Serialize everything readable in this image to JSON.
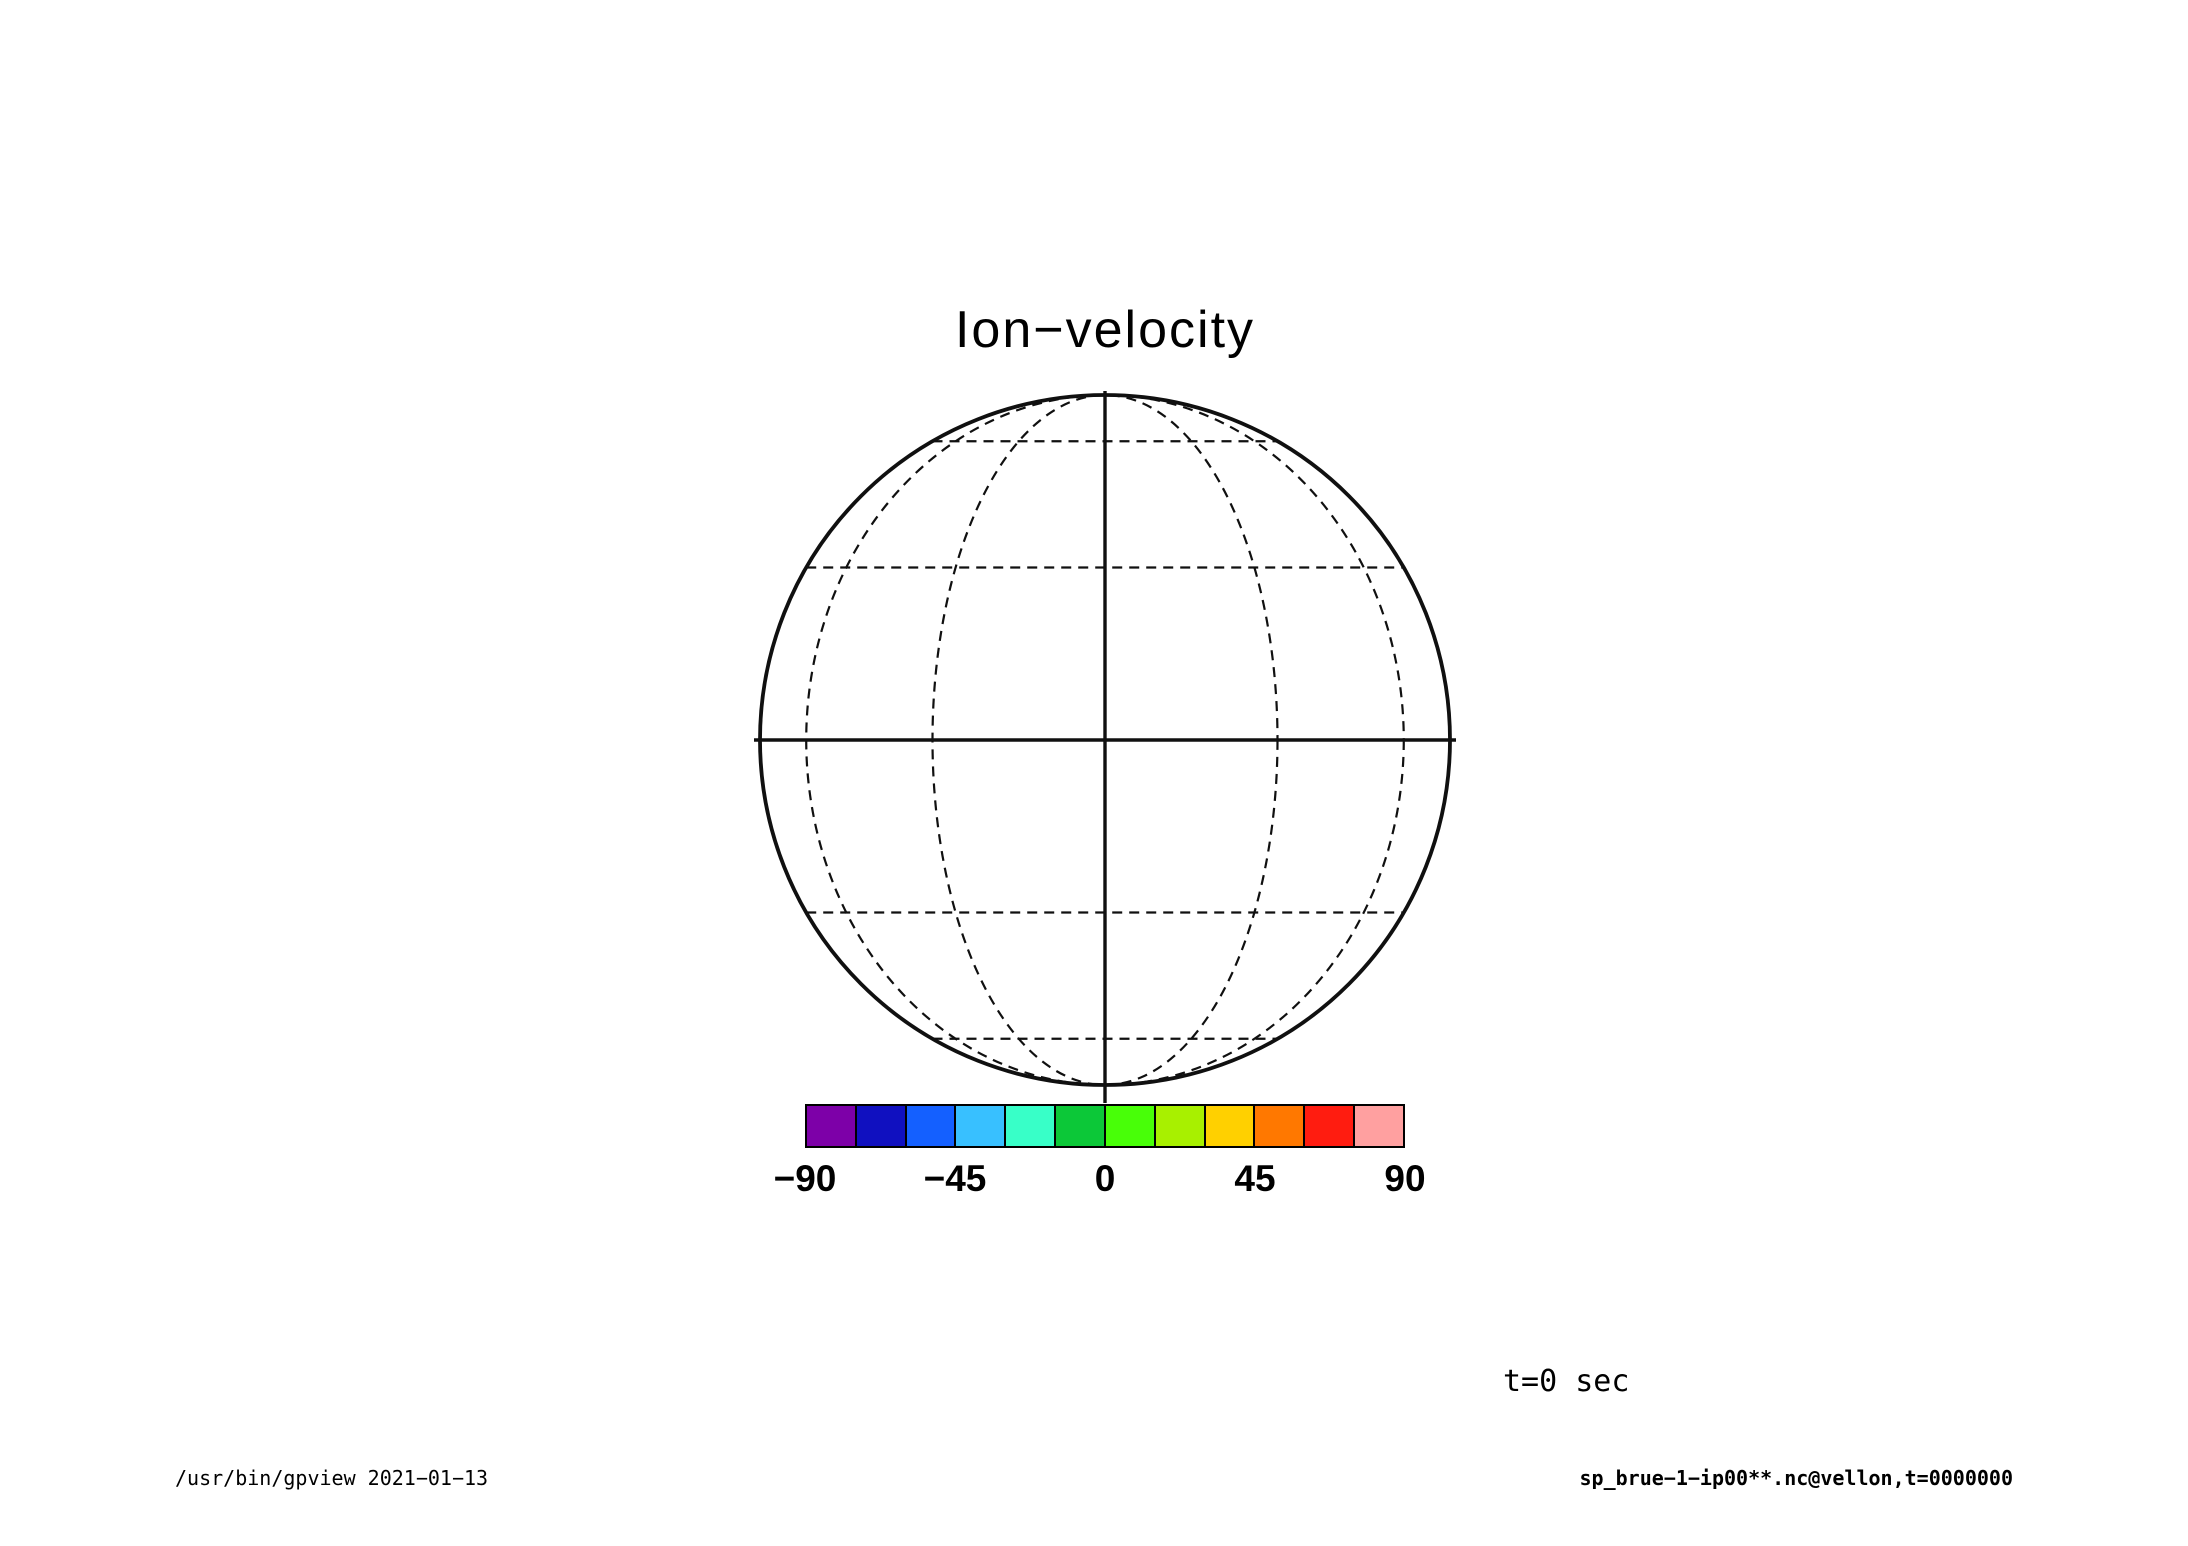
{
  "page": {
    "background": "#ffffff",
    "foreground": "#000000"
  },
  "title": "Ion−velocity",
  "time_label": "t=0 sec",
  "footer": {
    "left": "/usr/bin/gpview  2021−01−13",
    "right": "sp_brue−1−ip00**.nc@vellon,t=0000000"
  },
  "chart_data": {
    "type": "map-orthographic",
    "title": "Ion−velocity",
    "projection": "orthographic, equatorial aspect",
    "grid": {
      "spacing_deg": 30,
      "dashed_lines": "meridians and parallels every 30 degrees",
      "solid_lines": "equator, central meridian, globe outline",
      "grid_on": true
    },
    "field": "no contour/shade data plotted at t=0",
    "annotations": [
      "t=0 sec"
    ],
    "colorbar": {
      "orientation": "horizontal",
      "range": [
        -90,
        90
      ],
      "tick_values": [
        -90,
        -45,
        0,
        45,
        90
      ],
      "ticks": [
        "−90",
        "−45",
        "0",
        "45",
        "90"
      ],
      "n_cells": 12,
      "cell_width_value": 15,
      "cell_colors": [
        "#7d00a8",
        "#1010c0",
        "#1460ff",
        "#38c0ff",
        "#38ffc8",
        "#0cc838",
        "#48ff08",
        "#a8f000",
        "#ffd000",
        "#ff7800",
        "#ff1c10",
        "#ffa0a0"
      ]
    }
  }
}
